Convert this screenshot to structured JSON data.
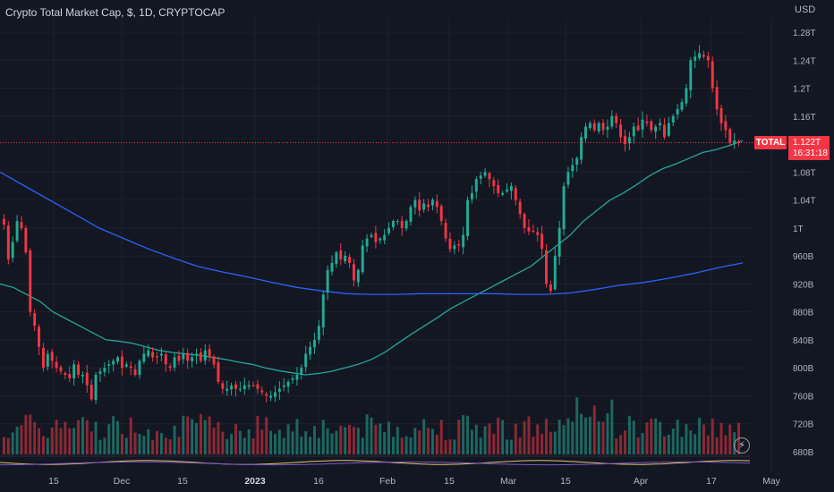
{
  "header": {
    "title": "Crypto Total Market Cap, $, 1D, CRYPTOCAP"
  },
  "price_scale": {
    "currency": "USD"
  },
  "last_price": {
    "symbol": "TOTAL",
    "value": "1.122T",
    "countdown": "16:31:18"
  },
  "colors": {
    "background": "#131722",
    "up": "#22ab94",
    "down": "#f23645",
    "volume_up": "#22ab94",
    "volume_down": "#f23645",
    "ma_fast": "#26a69a",
    "ma_slow": "#2962ff",
    "last_price_line": "#f23645"
  },
  "icons": {
    "bolt": "lightning-icon"
  },
  "chart_data": {
    "type": "candlestick",
    "title": "Crypto Total Market Cap, $, 1D, CRYPTOCAP",
    "y_unit": "USD",
    "ylim": [
      660,
      1300
    ],
    "y_ticks": [
      "1.28T",
      "1.24T",
      "1.2T",
      "1.16T",
      "1.08T",
      "1.04T",
      "1T",
      "960B",
      "920B",
      "880B",
      "840B",
      "800B",
      "760B",
      "720B",
      "680B"
    ],
    "y_tick_values": [
      1280,
      1240,
      1200,
      1160,
      1080,
      1040,
      1000,
      960,
      920,
      880,
      840,
      800,
      760,
      720,
      680
    ],
    "x_ticks": [
      "15",
      "Dec",
      "15",
      "2023",
      "16",
      "Feb",
      "15",
      "Mar",
      "15",
      "Apr",
      "17",
      "May"
    ],
    "close_series_billions": [
      1005,
      955,
      980,
      1010,
      1000,
      965,
      880,
      860,
      830,
      800,
      820,
      810,
      800,
      795,
      790,
      785,
      805,
      790,
      790,
      775,
      755,
      790,
      795,
      800,
      805,
      810,
      815,
      800,
      805,
      800,
      790,
      810,
      820,
      825,
      815,
      815,
      820,
      805,
      800,
      815,
      810,
      820,
      810,
      815,
      820,
      810,
      825,
      815,
      805,
      780,
      770,
      770,
      775,
      770,
      770,
      775,
      775,
      775,
      770,
      765,
      760,
      760,
      765,
      770,
      775,
      780,
      785,
      790,
      800,
      820,
      830,
      840,
      860,
      905,
      940,
      950,
      965,
      955,
      960,
      950,
      925,
      940,
      975,
      985,
      990,
      980,
      985,
      990,
      1000,
      1010,
      1010,
      1000,
      1010,
      1030,
      1040,
      1025,
      1035,
      1030,
      1040,
      1030,
      1010,
      985,
      970,
      975,
      975,
      990,
      1040,
      1050,
      1070,
      1075,
      1080,
      1070,
      1060,
      1050,
      1050,
      1055,
      1060,
      1040,
      1020,
      1000,
      995,
      995,
      990,
      970,
      920,
      910,
      960,
      1000,
      1060,
      1080,
      1090,
      1100,
      1130,
      1145,
      1150,
      1140,
      1150,
      1140,
      1145,
      1160,
      1150,
      1130,
      1120,
      1130,
      1145,
      1140,
      1155,
      1150,
      1140,
      1145,
      1150,
      1130,
      1150,
      1160,
      1170,
      1180,
      1200,
      1240,
      1245,
      1250,
      1245,
      1240,
      1200,
      1170,
      1150,
      1140,
      1122,
      1125,
      1122
    ],
    "ma_fast_billions": [
      920,
      915,
      905,
      895,
      880,
      870,
      860,
      850,
      840,
      838,
      835,
      830,
      825,
      822,
      820,
      818,
      815,
      812,
      808,
      805,
      800,
      796,
      793,
      790,
      792,
      795,
      800,
      805,
      812,
      822,
      835,
      848,
      860,
      872,
      885,
      895,
      905,
      915,
      925,
      935,
      945,
      960,
      975,
      990,
      1010,
      1025,
      1040,
      1050,
      1062,
      1075,
      1085,
      1092,
      1100,
      1108,
      1112,
      1118,
      1125
    ],
    "ma_slow_billions": [
      1080,
      1060,
      1040,
      1020,
      1000,
      985,
      970,
      957,
      945,
      937,
      930,
      922,
      915,
      910,
      906,
      905,
      905,
      906,
      906,
      906,
      906,
      905,
      905,
      907,
      912,
      918,
      922,
      928,
      935,
      943,
      950
    ],
    "volume": "relative bars, green on up days and red on down days"
  }
}
